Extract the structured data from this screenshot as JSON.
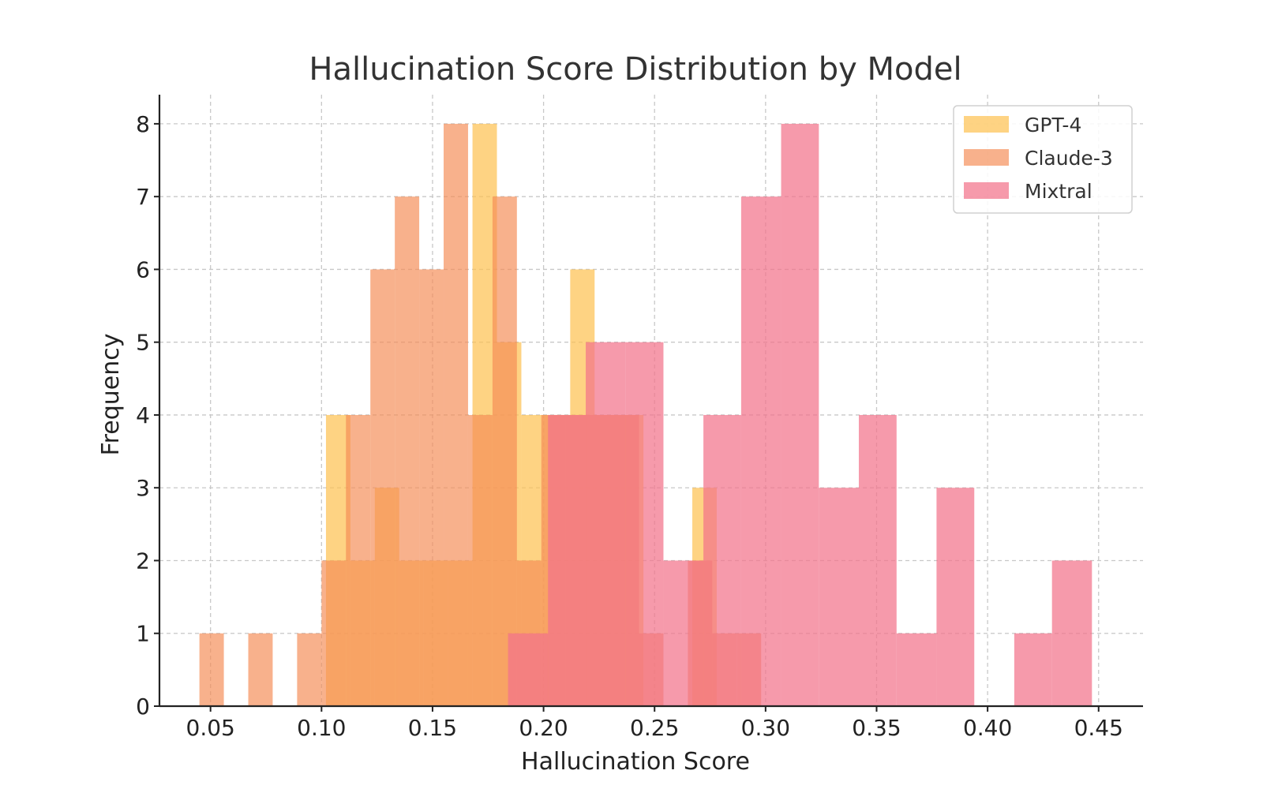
{
  "chart_data": {
    "type": "bar",
    "title": "Hallucination Score Distribution by Model",
    "xlabel": "Hallucination Score",
    "ylabel": "Frequency",
    "xlim": [
      0.027,
      0.47
    ],
    "ylim": [
      0,
      8.4
    ],
    "xticks": [
      "0.05",
      "0.10",
      "0.15",
      "0.20",
      "0.25",
      "0.30",
      "0.35",
      "0.40",
      "0.45"
    ],
    "xtick_values": [
      0.05,
      0.1,
      0.15,
      0.2,
      0.25,
      0.3,
      0.35,
      0.4,
      0.45
    ],
    "yticks": [
      "0",
      "1",
      "2",
      "3",
      "4",
      "5",
      "6",
      "7",
      "8"
    ],
    "ytick_values": [
      0,
      1,
      2,
      3,
      4,
      5,
      6,
      7,
      8
    ],
    "grid": true,
    "legend_position": "top-right",
    "series": [
      {
        "name": "GPT-4",
        "color": "#fdc04e",
        "opacity": 0.7,
        "bins": [
          {
            "x0": 0.102,
            "x1": 0.113,
            "count": 4
          },
          {
            "x0": 0.113,
            "x1": 0.124,
            "count": 2
          },
          {
            "x0": 0.124,
            "x1": 0.135,
            "count": 3
          },
          {
            "x0": 0.135,
            "x1": 0.146,
            "count": 2
          },
          {
            "x0": 0.146,
            "x1": 0.157,
            "count": 2
          },
          {
            "x0": 0.157,
            "x1": 0.168,
            "count": 2
          },
          {
            "x0": 0.168,
            "x1": 0.179,
            "count": 8
          },
          {
            "x0": 0.179,
            "x1": 0.19,
            "count": 5
          },
          {
            "x0": 0.19,
            "x1": 0.201,
            "count": 4
          },
          {
            "x0": 0.201,
            "x1": 0.212,
            "count": 4
          },
          {
            "x0": 0.212,
            "x1": 0.223,
            "count": 6
          },
          {
            "x0": 0.223,
            "x1": 0.234,
            "count": 4
          },
          {
            "x0": 0.234,
            "x1": 0.245,
            "count": 4
          },
          {
            "x0": 0.245,
            "x1": 0.256,
            "count": 0
          },
          {
            "x0": 0.256,
            "x1": 0.267,
            "count": 0
          },
          {
            "x0": 0.267,
            "x1": 0.278,
            "count": 3
          }
        ]
      },
      {
        "name": "Claude-3",
        "color": "#f48c55",
        "opacity": 0.68,
        "bins": [
          {
            "x0": 0.045,
            "x1": 0.056,
            "count": 1
          },
          {
            "x0": 0.067,
            "x1": 0.078,
            "count": 1
          },
          {
            "x0": 0.089,
            "x1": 0.1,
            "count": 1
          },
          {
            "x0": 0.1,
            "x1": 0.111,
            "count": 2
          },
          {
            "x0": 0.111,
            "x1": 0.122,
            "count": 4
          },
          {
            "x0": 0.122,
            "x1": 0.133,
            "count": 6
          },
          {
            "x0": 0.133,
            "x1": 0.144,
            "count": 7
          },
          {
            "x0": 0.144,
            "x1": 0.155,
            "count": 6
          },
          {
            "x0": 0.155,
            "x1": 0.166,
            "count": 8
          },
          {
            "x0": 0.166,
            "x1": 0.177,
            "count": 4
          },
          {
            "x0": 0.177,
            "x1": 0.188,
            "count": 7
          },
          {
            "x0": 0.188,
            "x1": 0.199,
            "count": 2
          },
          {
            "x0": 0.199,
            "x1": 0.21,
            "count": 4
          },
          {
            "x0": 0.21,
            "x1": 0.221,
            "count": 4
          },
          {
            "x0": 0.221,
            "x1": 0.232,
            "count": 4
          },
          {
            "x0": 0.232,
            "x1": 0.243,
            "count": 4
          },
          {
            "x0": 0.243,
            "x1": 0.254,
            "count": 1
          },
          {
            "x0": 0.254,
            "x1": 0.265,
            "count": 0
          },
          {
            "x0": 0.265,
            "x1": 0.276,
            "count": 2
          },
          {
            "x0": 0.276,
            "x1": 0.287,
            "count": 1
          },
          {
            "x0": 0.287,
            "x1": 0.298,
            "count": 1
          }
        ]
      },
      {
        "name": "Mixtral",
        "color": "#f3738a",
        "opacity": 0.72,
        "bins": [
          {
            "x0": 0.184,
            "x1": 0.202,
            "count": 1
          },
          {
            "x0": 0.202,
            "x1": 0.219,
            "count": 4
          },
          {
            "x0": 0.219,
            "x1": 0.237,
            "count": 5
          },
          {
            "x0": 0.237,
            "x1": 0.254,
            "count": 5
          },
          {
            "x0": 0.254,
            "x1": 0.272,
            "count": 2
          },
          {
            "x0": 0.272,
            "x1": 0.289,
            "count": 4
          },
          {
            "x0": 0.289,
            "x1": 0.307,
            "count": 7
          },
          {
            "x0": 0.307,
            "x1": 0.324,
            "count": 8
          },
          {
            "x0": 0.324,
            "x1": 0.342,
            "count": 3
          },
          {
            "x0": 0.342,
            "x1": 0.359,
            "count": 4
          },
          {
            "x0": 0.359,
            "x1": 0.377,
            "count": 1
          },
          {
            "x0": 0.377,
            "x1": 0.394,
            "count": 3
          },
          {
            "x0": 0.394,
            "x1": 0.412,
            "count": 0
          },
          {
            "x0": 0.412,
            "x1": 0.429,
            "count": 1
          },
          {
            "x0": 0.429,
            "x1": 0.447,
            "count": 2
          }
        ]
      }
    ]
  }
}
